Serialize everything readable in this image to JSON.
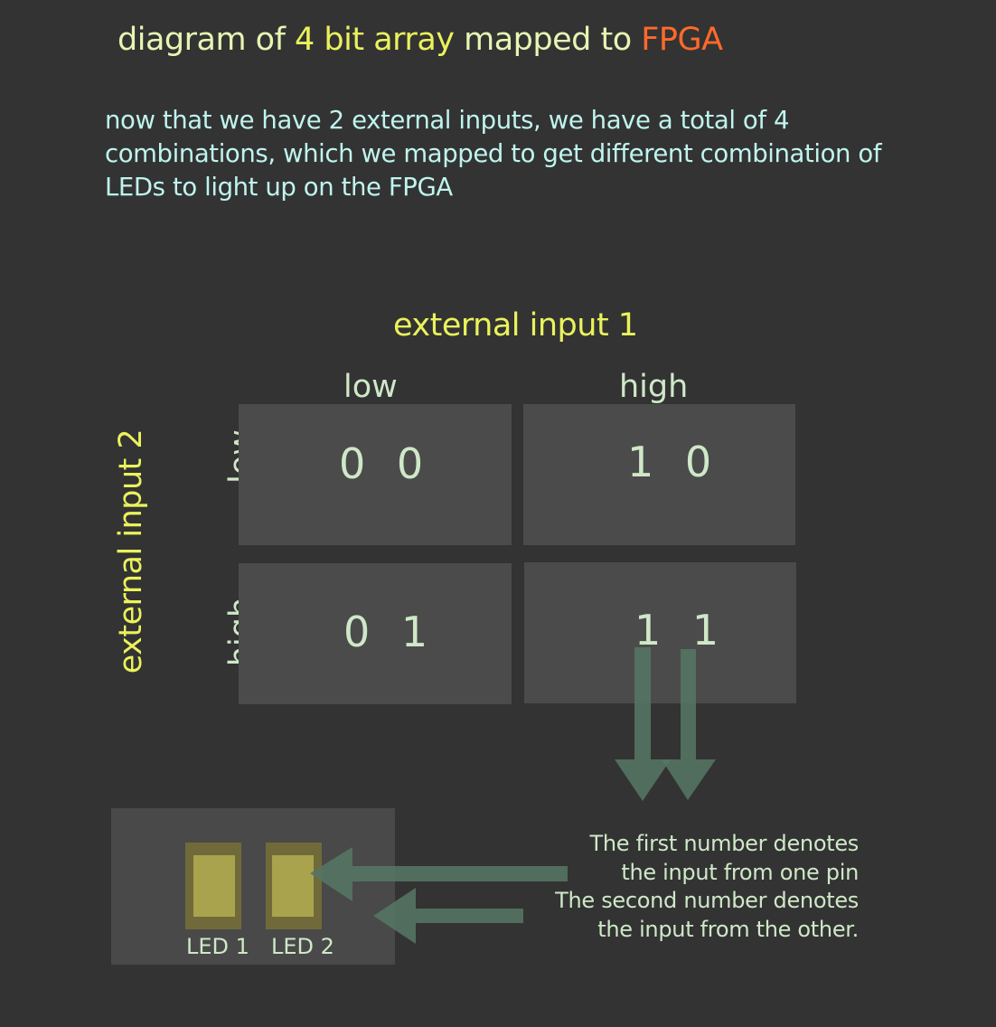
{
  "title": {
    "part1": "diagram of ",
    "part2": "4 bit array",
    "part3": " mapped to ",
    "part4": "FPGA"
  },
  "intro": "now that we have 2 external inputs, we have a total of 4 combinations, which we mapped to get different combination of LEDs to light up on the FPGA",
  "external_input_1": "external input 1",
  "external_input_2": "external input 2",
  "columns": [
    "low",
    "high"
  ],
  "rows": [
    "low",
    "high"
  ],
  "cells": [
    [
      "0 0",
      "1 0"
    ],
    [
      "0 1",
      "1 1"
    ]
  ],
  "leds": [
    "LED 1",
    "LED 2"
  ],
  "note_lines": [
    "The first number denotes",
    "the input from one pin",
    "The second number denotes",
    "the input from the other."
  ],
  "colors": {
    "background": "#333333",
    "yellow": "#eaf25c",
    "orange": "#ff6a2a",
    "cyan_text": "#bff4ee",
    "pale_text": "#cfe8c8",
    "cell": "#4b4b4b",
    "arrow": "#557563"
  }
}
